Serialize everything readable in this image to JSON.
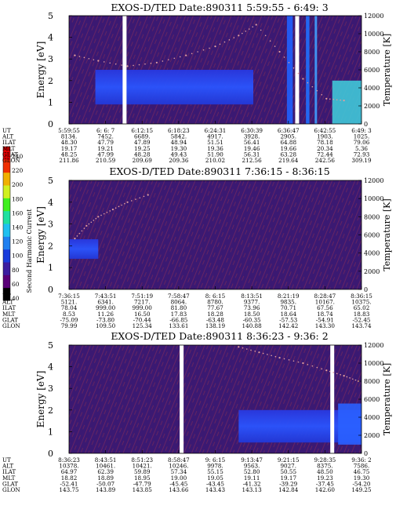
{
  "chart_data": {
    "type": "heatmap",
    "colorbar": {
      "label": "Second Harmonic Current",
      "ticks": [
        "40",
        "60",
        "80",
        "100",
        "120",
        "140",
        "160",
        "180",
        "200",
        "220",
        "240"
      ],
      "colors": [
        "#000000",
        "#5a0078",
        "#3c1ea0",
        "#1a3cdc",
        "#2080f0",
        "#20c0f0",
        "#20e0a0",
        "#40f020",
        "#d0f020",
        "#f0b000",
        "#f03000",
        "#e00000"
      ]
    },
    "colors": {
      "background": "#3a1470",
      "band_blue": "#2848ff",
      "streak": "#c03050",
      "dot": "#e0a0a0"
    },
    "panels": [
      {
        "title": "EXOS-D/TED   Date:890311   5:59:55 - 6:49: 3",
        "ylabel_left": "Energy [eV]",
        "ylabel_right": "Temperature [K]",
        "ylim": [
          0,
          5
        ],
        "yticks": [
          "0",
          "1",
          "2",
          "3",
          "4",
          "5"
        ],
        "y2lim": [
          0,
          12000
        ],
        "y2ticks": [
          "0",
          "2000",
          "4000",
          "6000",
          "8000",
          "10000",
          "12000"
        ],
        "gaps": [
          0.19,
          0.78
        ],
        "band": {
          "x0": 0.09,
          "x1": 0.63,
          "e0": 0.9,
          "e1": 2.5
        },
        "features": [
          {
            "kind": "bar",
            "x": 0.745,
            "w": 0.02,
            "color": "#2060ff"
          },
          {
            "kind": "bar",
            "x": 0.775,
            "w": 0.01,
            "color": "#60d0ff"
          },
          {
            "kind": "bar",
            "x": 0.81,
            "w": 0.012,
            "color": "#2070ff"
          },
          {
            "kind": "bar",
            "x": 0.84,
            "w": 0.008,
            "color": "#40a0ff"
          },
          {
            "kind": "patch",
            "x0": 0.9,
            "x1": 1.0,
            "e0": 0.0,
            "e1": 2.0,
            "color": "#40c8d8"
          }
        ],
        "temperature_dots": [
          [
            0.02,
            7600
          ],
          [
            0.1,
            7000
          ],
          [
            0.2,
            6400
          ],
          [
            0.3,
            6800
          ],
          [
            0.4,
            7600
          ],
          [
            0.5,
            8600
          ],
          [
            0.58,
            9800
          ],
          [
            0.64,
            11000
          ],
          [
            0.72,
            8000
          ],
          [
            0.8,
            5000
          ],
          [
            0.88,
            2800
          ],
          [
            0.94,
            2600
          ]
        ],
        "axis_rows": [
          {
            "label": "UT",
            "values": [
              "5:59:55",
              "6: 6: 7",
              "6:12:15",
              "6:18:23",
              "6:24:31",
              "6:30:39",
              "6:36:47",
              "6:42:55",
              "6:49: 3"
            ]
          },
          {
            "label": "ALT",
            "values": [
              "8134.",
              "7452.",
              "6689.",
              "5842.",
              "4917.",
              "3928.",
              "2905.",
              "1903.",
              "1025."
            ]
          },
          {
            "label": "ILAT",
            "values": [
              "48.30",
              "47.79",
              "47.89",
              "48.94",
              "51.51",
              "56.41",
              "64.88",
              "78.18",
              "79.06"
            ]
          },
          {
            "label": "MLT",
            "values": [
              "19.17",
              "19.21",
              "19.25",
              "19.30",
              "19.36",
              "19.46",
              "19.66",
              "20.34",
              "5.36"
            ]
          },
          {
            "label": "GLAT",
            "values": [
              "48.25",
              "47.99",
              "48.28",
              "49.43",
              "51.90",
              "56.31",
              "63.28",
              "72.44",
              "72.93"
            ]
          },
          {
            "label": "GLON",
            "values": [
              "211.86",
              "210.59",
              "209.69",
              "209.36",
              "210.02",
              "212.56",
              "219.64",
              "242.56",
              "309.19"
            ]
          }
        ]
      },
      {
        "title": "EXOS-D/TED   Date:890311   7:36:15 - 8:36:15",
        "ylabel_left": "Energy [eV]",
        "ylabel_right": "Temperature [K]",
        "ylim": [
          0,
          5
        ],
        "yticks": [
          "0",
          "1",
          "2",
          "3",
          "4",
          "5"
        ],
        "y2lim": [
          0,
          12000
        ],
        "y2ticks": [
          "0",
          "2000",
          "4000",
          "6000",
          "8000",
          "10000",
          "12000"
        ],
        "gaps": [],
        "band": {
          "x0": 0.0,
          "x1": 0.1,
          "e0": 1.4,
          "e1": 2.3
        },
        "features": [],
        "temperature_dots": [
          [
            0.02,
            5600
          ],
          [
            0.06,
            7000
          ],
          [
            0.1,
            8000
          ],
          [
            0.15,
            8800
          ],
          [
            0.2,
            9600
          ],
          [
            0.27,
            10400
          ]
        ],
        "axis_rows": [
          {
            "label": "UT",
            "values": [
              "7:36:15",
              "7:43:51",
              "7:51:19",
              "7:58:47",
              "8: 6:15",
              "8:13:51",
              "8:21:19",
              "8:28:47",
              "8:36:15"
            ]
          },
          {
            "label": "ALT",
            "values": [
              "5121.",
              "6341.",
              "7217.",
              "8064.",
              "8780.",
              "9377.",
              "9835.",
              "10167.",
              "10375."
            ]
          },
          {
            "label": "ILAT",
            "values": [
              "78.04",
              "999.00",
              "999.00",
              "81.80",
              "77.67",
              "73.96",
              "70.71",
              "67.56",
              "65.02"
            ]
          },
          {
            "label": "MLT",
            "values": [
              "8.53",
              "11.26",
              "16.50",
              "17.83",
              "18.28",
              "18.50",
              "18.64",
              "18.74",
              "18.83"
            ]
          },
          {
            "label": "GLAT",
            "values": [
              "-75.09",
              "-73.80",
              "-70.44",
              "-66.85",
              "-63.48",
              "-60.35",
              "-57.53",
              "-54.91",
              "-52.45"
            ]
          },
          {
            "label": "GLON",
            "values": [
              "79.99",
              "109.50",
              "125.34",
              "133.61",
              "138.19",
              "140.88",
              "142.42",
              "143.30",
              "143.74"
            ]
          }
        ]
      },
      {
        "title": "EXOS-D/TED   Date:890311   8:36:23 - 9:36: 2",
        "ylabel_left": "Energy [eV]",
        "ylabel_right": "Temperature [K]",
        "ylim": [
          0,
          5
        ],
        "yticks": [
          "0",
          "1",
          "2",
          "3",
          "4",
          "5"
        ],
        "y2lim": [
          0,
          12000
        ],
        "y2ticks": [
          "0",
          "2000",
          "4000",
          "6000",
          "8000",
          "10000",
          "12000"
        ],
        "gaps": [
          0.385,
          0.9
        ],
        "band": {
          "x0": 0.58,
          "x1": 1.0,
          "e0": 0.5,
          "e1": 2.0
        },
        "features": [
          {
            "kind": "patch",
            "x0": 0.92,
            "x1": 1.0,
            "e0": 0.4,
            "e1": 2.3,
            "color": "#2a60ff"
          }
        ],
        "temperature_dots": [
          [
            0.58,
            11800
          ],
          [
            0.65,
            11200
          ],
          [
            0.72,
            10600
          ],
          [
            0.8,
            10000
          ],
          [
            0.88,
            9200
          ],
          [
            0.94,
            8600
          ],
          [
            0.99,
            8000
          ]
        ],
        "axis_rows": [
          {
            "label": "UT",
            "values": [
              "8:36:23",
              "8:43:51",
              "8:51:23",
              "8:58:47",
              "9: 6:15",
              "9:13:47",
              "9:21:15",
              "9:28:35",
              "9:36: 2"
            ]
          },
          {
            "label": "ALT",
            "values": [
              "10378.",
              "10461.",
              "10421.",
              "10246.",
              "9978.",
              "9563.",
              "9027.",
              "8375.",
              "7586."
            ]
          },
          {
            "label": "ILAT",
            "values": [
              "64.97",
              "62.39",
              "59.89",
              "57.34",
              "55.15",
              "52.80",
              "50.55",
              "48.50",
              "46.75"
            ]
          },
          {
            "label": "MLT",
            "values": [
              "18.82",
              "18.89",
              "18.95",
              "19.00",
              "19.05",
              "19.11",
              "19.17",
              "19.23",
              "19.30"
            ]
          },
          {
            "label": "GLAT",
            "values": [
              "-52.41",
              "-50.07",
              "-47.79",
              "-45.45",
              "-43.45",
              "-41.32",
              "-39.29",
              "-37.45",
              "-54.20"
            ]
          },
          {
            "label": "GLON",
            "values": [
              "143.75",
              "143.89",
              "143.85",
              "143.66",
              "143.43",
              "143.13",
              "142.84",
              "142.60",
              "149.25"
            ]
          }
        ]
      }
    ]
  }
}
